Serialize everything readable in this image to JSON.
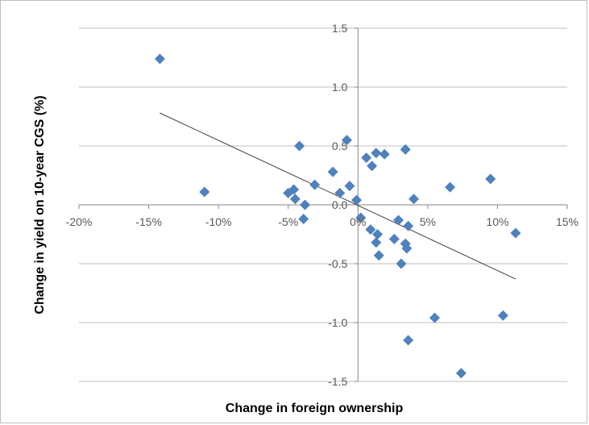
{
  "chart_data": {
    "type": "scatter",
    "title": "",
    "xlabel": "Change in foreign ownership",
    "ylabel": "Change in yield on 10-year CGS (%)",
    "xlim": [
      -20,
      15
    ],
    "ylim": [
      -1.5,
      1.5
    ],
    "x_ticks": [
      -20,
      -15,
      -10,
      -5,
      0,
      5,
      10,
      15
    ],
    "y_ticks": [
      1.5,
      1.0,
      0.5,
      0.0,
      -0.5,
      -1.0,
      -1.5
    ],
    "x_tick_labels": [
      "-20%",
      "-15%",
      "-10%",
      "-5%",
      "0%",
      "5%",
      "10%",
      "15%"
    ],
    "y_tick_labels": [
      "1.5",
      "1.0",
      "0.5",
      "0.0",
      "-0.5",
      "-1.0",
      "-1.5"
    ],
    "grid": "horizontal",
    "marker_color": "#4f81bd",
    "trendline_color": "#404040",
    "series": [
      {
        "points": [
          [
            -14.2,
            1.24
          ],
          [
            -11.0,
            0.11
          ],
          [
            -5.0,
            0.1
          ],
          [
            -4.6,
            0.13
          ],
          [
            -4.5,
            0.05
          ],
          [
            -4.2,
            0.5
          ],
          [
            -3.8,
            0.0
          ],
          [
            -3.9,
            -0.12
          ],
          [
            -3.1,
            0.17
          ],
          [
            -1.8,
            0.28
          ],
          [
            -1.3,
            0.1
          ],
          [
            -0.8,
            0.55
          ],
          [
            -0.6,
            0.16
          ],
          [
            -0.1,
            0.04
          ],
          [
            0.2,
            -0.11
          ],
          [
            0.6,
            0.4
          ],
          [
            0.9,
            -0.21
          ],
          [
            1.0,
            0.33
          ],
          [
            1.3,
            0.44
          ],
          [
            1.4,
            -0.25
          ],
          [
            1.3,
            -0.32
          ],
          [
            1.5,
            -0.43
          ],
          [
            1.9,
            0.43
          ],
          [
            2.6,
            -0.29
          ],
          [
            2.9,
            -0.13
          ],
          [
            3.1,
            -0.5
          ],
          [
            3.4,
            0.47
          ],
          [
            3.4,
            -0.33
          ],
          [
            3.5,
            -0.37
          ],
          [
            3.6,
            -0.18
          ],
          [
            4.0,
            0.05
          ],
          [
            3.6,
            -1.15
          ],
          [
            5.5,
            -0.96
          ],
          [
            6.6,
            0.15
          ],
          [
            7.4,
            -1.43
          ],
          [
            9.5,
            0.22
          ],
          [
            10.4,
            -0.94
          ],
          [
            11.3,
            -0.24
          ]
        ]
      }
    ],
    "trendline": {
      "x": [
        -14.2,
        11.3
      ],
      "y": [
        0.78,
        -0.63
      ]
    }
  }
}
